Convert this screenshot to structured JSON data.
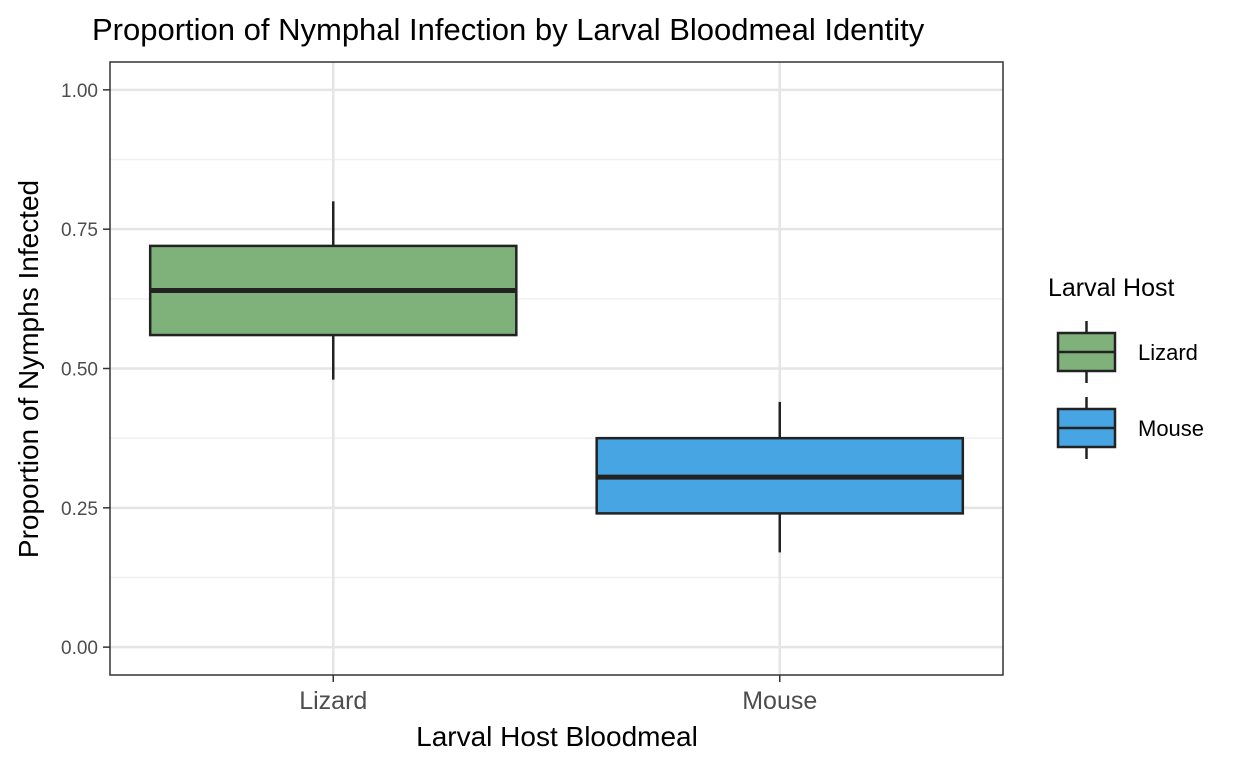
{
  "chart_data": {
    "type": "boxplot",
    "title": "Proportion of Nymphal Infection by Larval Bloodmeal Identity",
    "xlabel": "Larval Host Bloodmeal",
    "ylabel": "Proportion of Nymphs Infected",
    "ylim": [
      -0.05,
      1.05
    ],
    "y_ticks": [
      0.0,
      0.25,
      0.5,
      0.75,
      1.0
    ],
    "y_tick_labels": [
      "0.00",
      "0.25",
      "0.50",
      "0.75",
      "1.00"
    ],
    "categories": [
      "Lizard",
      "Mouse"
    ],
    "grid": true,
    "legend": {
      "title": "Larval Host",
      "position": "right",
      "entries": [
        "Lizard",
        "Mouse"
      ]
    },
    "boxes": [
      {
        "category": "Lizard",
        "whisker_low": 0.48,
        "q1": 0.56,
        "median": 0.64,
        "q3": 0.72,
        "whisker_high": 0.8,
        "color": "#7fb17a"
      },
      {
        "category": "Mouse",
        "whisker_low": 0.17,
        "q1": 0.24,
        "median": 0.305,
        "q3": 0.375,
        "whisker_high": 0.44,
        "color": "#47a5e3"
      }
    ]
  }
}
